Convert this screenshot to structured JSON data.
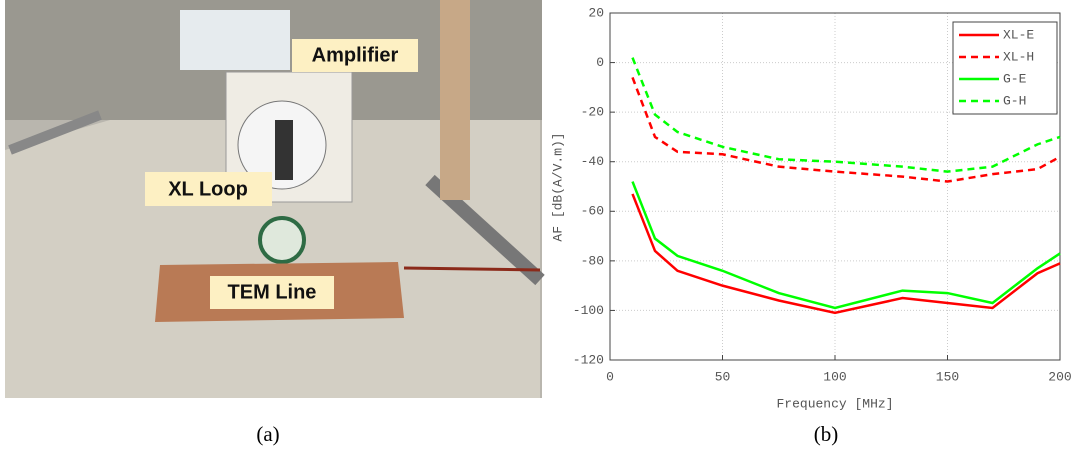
{
  "photo": {
    "labels": [
      "Amplifier",
      "XL Loop",
      "TEM Line"
    ]
  },
  "captions": [
    "(a)",
    "(b)"
  ],
  "chart_data": {
    "type": "line",
    "xlabel": "Frequency [MHz]",
    "ylabel": "AF [dB(A/V.m)]",
    "x": [
      10,
      20,
      30,
      50,
      75,
      100,
      130,
      150,
      170,
      190,
      200
    ],
    "series": [
      {
        "name": "XL-E",
        "color": "#ff0000",
        "line_style": "solid",
        "values": [
          -53,
          -76,
          -84,
          -90,
          -96,
          -101,
          -95,
          -97,
          -99,
          -85,
          -81
        ]
      },
      {
        "name": "XL-H",
        "color": "#ff0000",
        "line_style": "dashed",
        "values": [
          -6,
          -30,
          -36,
          -37,
          -42,
          -44,
          -46,
          -48,
          -45,
          -43,
          -38
        ]
      },
      {
        "name": "G-E",
        "color": "#00ff00",
        "line_style": "solid",
        "values": [
          -48,
          -71,
          -78,
          -84,
          -93,
          -99,
          -92,
          -93,
          -97,
          -83,
          -77
        ]
      },
      {
        "name": "G-H",
        "color": "#00ff00",
        "line_style": "dashed",
        "values": [
          2,
          -21,
          -28,
          -34,
          -39,
          -40,
          -42,
          -44,
          -42,
          -33,
          -30
        ]
      }
    ],
    "xlim": [
      0,
      200
    ],
    "xticks": [
      0,
      50,
      100,
      150,
      200
    ],
    "ylim": [
      -120,
      20
    ],
    "yticks": [
      -120,
      -100,
      -80,
      -60,
      -40,
      -20,
      0,
      20
    ],
    "grid": true,
    "legend": "upper right"
  }
}
